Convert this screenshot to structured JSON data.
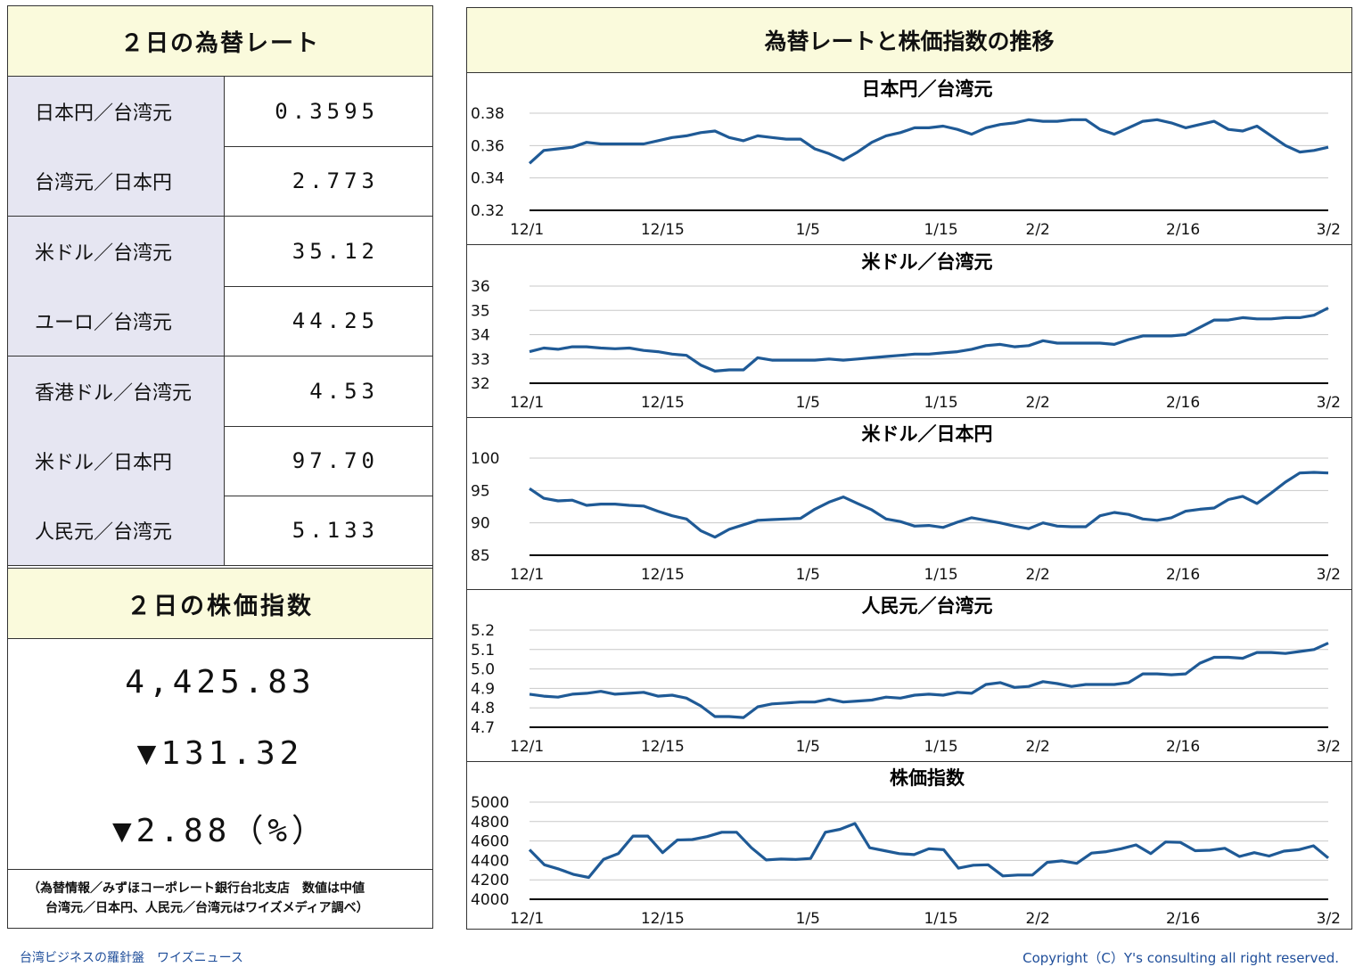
{
  "rates": {
    "title": "２日の為替レート",
    "rows": [
      {
        "label": "日本円／台湾元",
        "value": "0.3595"
      },
      {
        "label": "台湾元／日本円",
        "value": "2.773"
      },
      {
        "label": "米ドル／台湾元",
        "value": "35.12"
      },
      {
        "label": "ユーロ／台湾元",
        "value": "44.25"
      },
      {
        "label": "香港ドル／台湾元",
        "value": "4.53"
      },
      {
        "label": "米ドル／日本円",
        "value": "97.70"
      },
      {
        "label": "人民元／台湾元",
        "value": "5.133"
      }
    ]
  },
  "stock": {
    "title": "２日の株価指数",
    "index": "4,425.83",
    "change": "▼131.32",
    "change_pct": "▼2.88（%）"
  },
  "source_note": {
    "line1": "（為替情報／みずほコーポレート銀行台北支店　数値は中値",
    "line2": "台湾元／日本円、人民元／台湾元はワイズメディア調べ）"
  },
  "charts_title": "為替レートと株価指数の推移",
  "footer": {
    "left": "台湾ビジネスの羅針盤　ワイズニュース",
    "right": "Copyright（C）Y's consulting all right reserved."
  },
  "colors": {
    "line": "#1f5a96",
    "header_bg": "#fafadc",
    "label_bg": "#e6e6f2",
    "footer_text": "#1f4e9a"
  },
  "chart_data": [
    {
      "type": "line",
      "title": "日本円／台湾元",
      "ylim": [
        0.32,
        0.38
      ],
      "yticks": [
        "0.38",
        "0.36",
        "0.34",
        "0.32"
      ],
      "xtick_labels": [
        "12/1",
        "12/15",
        "1/5",
        "1/15",
        "2/2",
        "2/16",
        "3/2"
      ],
      "xtick_positions": [
        0,
        11,
        23,
        34,
        42,
        54,
        66
      ],
      "values": [
        0.349,
        0.357,
        0.358,
        0.359,
        0.362,
        0.361,
        0.361,
        0.361,
        0.361,
        0.363,
        0.365,
        0.366,
        0.368,
        0.369,
        0.365,
        0.363,
        0.366,
        0.365,
        0.364,
        0.364,
        0.358,
        0.355,
        0.351,
        0.356,
        0.362,
        0.366,
        0.368,
        0.371,
        0.371,
        0.372,
        0.37,
        0.367,
        0.371,
        0.373,
        0.374,
        0.376,
        0.375,
        0.375,
        0.376,
        0.376,
        0.37,
        0.367,
        0.371,
        0.375,
        0.376,
        0.374,
        0.371,
        0.373,
        0.375,
        0.37,
        0.369,
        0.372,
        0.366,
        0.36,
        0.356,
        0.357,
        0.359
      ]
    },
    {
      "type": "line",
      "title": "米ドル／台湾元",
      "ylim": [
        32,
        36
      ],
      "yticks": [
        "36",
        "35",
        "34",
        "33",
        "32"
      ],
      "xtick_labels": [
        "12/1",
        "12/15",
        "1/5",
        "1/15",
        "2/2",
        "2/16",
        "3/2"
      ],
      "xtick_positions": [
        0,
        11,
        23,
        34,
        42,
        54,
        66
      ],
      "values": [
        33.3,
        33.45,
        33.4,
        33.5,
        33.5,
        33.45,
        33.42,
        33.45,
        33.35,
        33.3,
        33.2,
        33.15,
        32.75,
        32.5,
        32.55,
        32.55,
        33.05,
        32.95,
        32.95,
        32.95,
        32.95,
        33.0,
        32.95,
        33.0,
        33.05,
        33.1,
        33.15,
        33.2,
        33.2,
        33.25,
        33.3,
        33.4,
        33.55,
        33.6,
        33.5,
        33.55,
        33.75,
        33.65,
        33.65,
        33.65,
        33.65,
        33.6,
        33.8,
        33.95,
        33.95,
        33.95,
        34.0,
        34.3,
        34.6,
        34.6,
        34.7,
        34.65,
        34.65,
        34.7,
        34.7,
        34.8,
        35.1
      ]
    },
    {
      "type": "line",
      "title": "米ドル／日本円",
      "ylim": [
        85,
        100
      ],
      "yticks": [
        "100",
        "95",
        "90",
        "85"
      ],
      "xtick_labels": [
        "12/1",
        "12/15",
        "1/5",
        "1/15",
        "2/2",
        "2/16",
        "3/2"
      ],
      "xtick_positions": [
        0,
        11,
        23,
        34,
        42,
        54,
        66
      ],
      "values": [
        95.3,
        93.8,
        93.4,
        93.5,
        92.7,
        92.9,
        92.9,
        92.7,
        92.6,
        91.8,
        91.1,
        90.6,
        88.8,
        87.8,
        89.0,
        89.7,
        90.4,
        90.5,
        90.6,
        90.7,
        92.1,
        93.2,
        94.0,
        93.0,
        92.0,
        90.6,
        90.2,
        89.5,
        89.6,
        89.3,
        90.1,
        90.8,
        90.4,
        90.0,
        89.5,
        89.1,
        90.0,
        89.5,
        89.4,
        89.4,
        91.1,
        91.6,
        91.3,
        90.6,
        90.4,
        90.8,
        91.8,
        92.1,
        92.3,
        93.6,
        94.1,
        93.0,
        94.6,
        96.3,
        97.7,
        97.8,
        97.7
      ]
    },
    {
      "type": "line",
      "title": "人民元／台湾元",
      "ylim": [
        4.7,
        5.2
      ],
      "yticks": [
        "5.2",
        "5.1",
        "5.0",
        "4.9",
        "4.8",
        "4.7"
      ],
      "xtick_labels": [
        "12/1",
        "12/15",
        "1/5",
        "1/15",
        "2/2",
        "2/16",
        "3/2"
      ],
      "xtick_positions": [
        0,
        11,
        23,
        34,
        42,
        54,
        66
      ],
      "values": [
        4.87,
        4.86,
        4.855,
        4.87,
        4.875,
        4.885,
        4.87,
        4.875,
        4.88,
        4.86,
        4.865,
        4.85,
        4.81,
        4.755,
        4.755,
        4.75,
        4.805,
        4.82,
        4.825,
        4.83,
        4.83,
        4.845,
        4.83,
        4.835,
        4.84,
        4.855,
        4.85,
        4.865,
        4.87,
        4.865,
        4.88,
        4.875,
        4.92,
        4.93,
        4.905,
        4.91,
        4.935,
        4.925,
        4.91,
        4.92,
        4.92,
        4.92,
        4.93,
        4.975,
        4.975,
        4.97,
        4.975,
        5.03,
        5.06,
        5.06,
        5.055,
        5.085,
        5.085,
        5.08,
        5.09,
        5.1,
        5.133
      ]
    },
    {
      "type": "line",
      "title": "株価指数",
      "ylim": [
        4000,
        5000
      ],
      "yticks": [
        "5000",
        "4800",
        "4600",
        "4400",
        "4200",
        "4000"
      ],
      "xtick_labels": [
        "12/1",
        "12/15",
        "1/5",
        "1/15",
        "2/2",
        "2/16",
        "3/2"
      ],
      "xtick_positions": [
        0,
        11,
        23,
        34,
        42,
        54,
        66
      ],
      "values": [
        4510,
        4355,
        4310,
        4255,
        4225,
        4410,
        4470,
        4650,
        4650,
        4480,
        4610,
        4615,
        4645,
        4690,
        4690,
        4530,
        4405,
        4415,
        4410,
        4420,
        4690,
        4720,
        4780,
        4530,
        4500,
        4470,
        4460,
        4520,
        4510,
        4320,
        4350,
        4355,
        4240,
        4250,
        4250,
        4380,
        4395,
        4370,
        4475,
        4490,
        4520,
        4560,
        4470,
        4590,
        4585,
        4500,
        4505,
        4525,
        4440,
        4480,
        4445,
        4495,
        4510,
        4550,
        4425
      ]
    }
  ]
}
